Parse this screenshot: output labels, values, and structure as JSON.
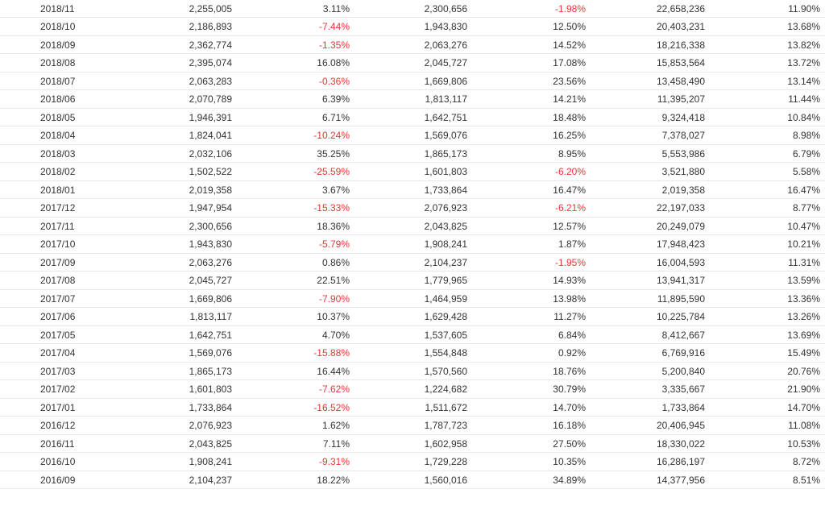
{
  "table": {
    "rows": [
      [
        "2018/11",
        "2,255,005",
        "3.11%",
        "2,300,656",
        "-1.98%",
        "22,658,236",
        "11.90%"
      ],
      [
        "2018/10",
        "2,186,893",
        "-7.44%",
        "1,943,830",
        "12.50%",
        "20,403,231",
        "13.68%"
      ],
      [
        "2018/09",
        "2,362,774",
        "-1.35%",
        "2,063,276",
        "14.52%",
        "18,216,338",
        "13.82%"
      ],
      [
        "2018/08",
        "2,395,074",
        "16.08%",
        "2,045,727",
        "17.08%",
        "15,853,564",
        "13.72%"
      ],
      [
        "2018/07",
        "2,063,283",
        "-0.36%",
        "1,669,806",
        "23.56%",
        "13,458,490",
        "13.14%"
      ],
      [
        "2018/06",
        "2,070,789",
        "6.39%",
        "1,813,117",
        "14.21%",
        "11,395,207",
        "11.44%"
      ],
      [
        "2018/05",
        "1,946,391",
        "6.71%",
        "1,642,751",
        "18.48%",
        "9,324,418",
        "10.84%"
      ],
      [
        "2018/04",
        "1,824,041",
        "-10.24%",
        "1,569,076",
        "16.25%",
        "7,378,027",
        "8.98%"
      ],
      [
        "2018/03",
        "2,032,106",
        "35.25%",
        "1,865,173",
        "8.95%",
        "5,553,986",
        "6.79%"
      ],
      [
        "2018/02",
        "1,502,522",
        "-25.59%",
        "1,601,803",
        "-6.20%",
        "3,521,880",
        "5.58%"
      ],
      [
        "2018/01",
        "2,019,358",
        "3.67%",
        "1,733,864",
        "16.47%",
        "2,019,358",
        "16.47%"
      ],
      [
        "2017/12",
        "1,947,954",
        "-15.33%",
        "2,076,923",
        "-6.21%",
        "22,197,033",
        "8.77%"
      ],
      [
        "2017/11",
        "2,300,656",
        "18.36%",
        "2,043,825",
        "12.57%",
        "20,249,079",
        "10.47%"
      ],
      [
        "2017/10",
        "1,943,830",
        "-5.79%",
        "1,908,241",
        "1.87%",
        "17,948,423",
        "10.21%"
      ],
      [
        "2017/09",
        "2,063,276",
        "0.86%",
        "2,104,237",
        "-1.95%",
        "16,004,593",
        "11.31%"
      ],
      [
        "2017/08",
        "2,045,727",
        "22.51%",
        "1,779,965",
        "14.93%",
        "13,941,317",
        "13.59%"
      ],
      [
        "2017/07",
        "1,669,806",
        "-7.90%",
        "1,464,959",
        "13.98%",
        "11,895,590",
        "13.36%"
      ],
      [
        "2017/06",
        "1,813,117",
        "10.37%",
        "1,629,428",
        "11.27%",
        "10,225,784",
        "13.26%"
      ],
      [
        "2017/05",
        "1,642,751",
        "4.70%",
        "1,537,605",
        "6.84%",
        "8,412,667",
        "13.69%"
      ],
      [
        "2017/04",
        "1,569,076",
        "-15.88%",
        "1,554,848",
        "0.92%",
        "6,769,916",
        "15.49%"
      ],
      [
        "2017/03",
        "1,865,173",
        "16.44%",
        "1,570,560",
        "18.76%",
        "5,200,840",
        "20.76%"
      ],
      [
        "2017/02",
        "1,601,803",
        "-7.62%",
        "1,224,682",
        "30.79%",
        "3,335,667",
        "21.90%"
      ],
      [
        "2017/01",
        "1,733,864",
        "-16.52%",
        "1,511,672",
        "14.70%",
        "1,733,864",
        "14.70%"
      ],
      [
        "2016/12",
        "2,076,923",
        "1.62%",
        "1,787,723",
        "16.18%",
        "20,406,945",
        "11.08%"
      ],
      [
        "2016/11",
        "2,043,825",
        "7.11%",
        "1,602,958",
        "27.50%",
        "18,330,022",
        "10.53%"
      ],
      [
        "2016/10",
        "1,908,241",
        "-9.31%",
        "1,729,228",
        "10.35%",
        "16,286,197",
        "8.72%"
      ],
      [
        "2016/09",
        "2,104,237",
        "18.22%",
        "1,560,016",
        "34.89%",
        "14,377,956",
        "8.51%"
      ]
    ]
  },
  "colors": {
    "text": "#333333",
    "negative": "#ee3333",
    "row_divider": "#e8e8e8"
  }
}
